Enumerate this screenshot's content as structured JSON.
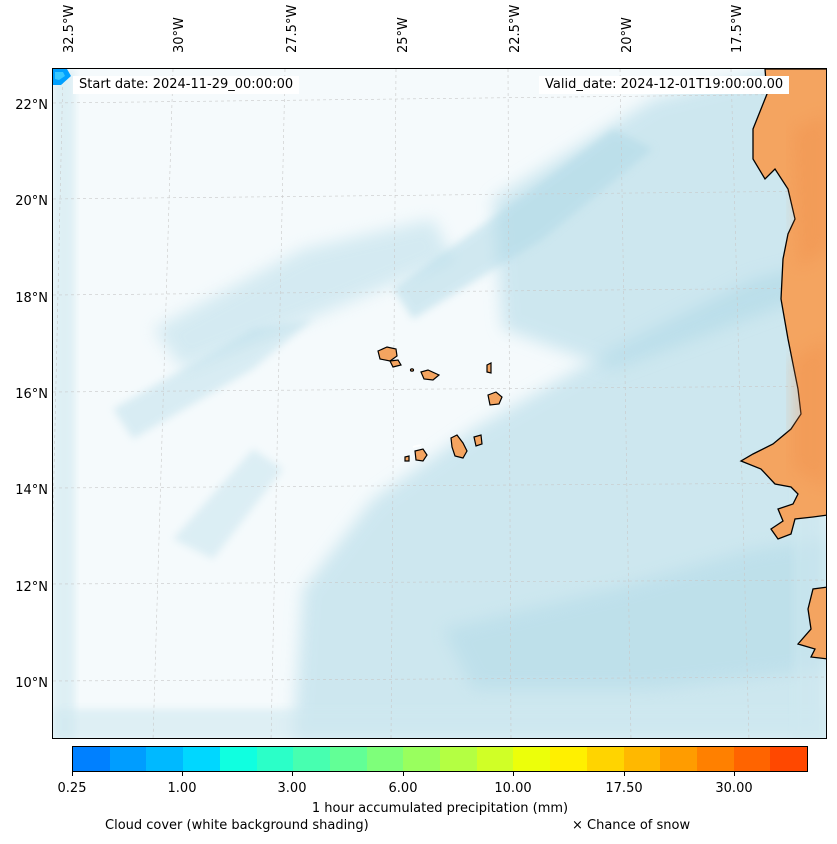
{
  "map": {
    "longitude_labels": [
      "32.5°W",
      "30°W",
      "27.5°W",
      "25°W",
      "22.5°W",
      "20°W",
      "17.5°W"
    ],
    "latitude_labels": [
      "22°N",
      "20°N",
      "18°N",
      "16°N",
      "14°N",
      "12°N",
      "10°N"
    ],
    "start_date": "Start date: 2024-11-29_00:00:00",
    "valid_date": "Valid_date: 2024-12-01T19:00:00.00",
    "colors": {
      "ocean_cloud": "#add8e6",
      "land": "#f4a460",
      "coast": "#000000"
    }
  },
  "colorbar": {
    "colors": [
      "#0080ff",
      "#009dff",
      "#00b9ff",
      "#00d7ff",
      "#10ffe0",
      "#2bffc8",
      "#47ffb0",
      "#62ff96",
      "#7eff7a",
      "#99ff5e",
      "#b4ff42",
      "#d0ff26",
      "#ecff0a",
      "#fff000",
      "#ffd400",
      "#ffb800",
      "#ff9c00",
      "#ff8000",
      "#ff6400",
      "#ff4800"
    ],
    "ticks": [
      "0.25",
      "1.00",
      "3.00",
      "6.00",
      "10.00",
      "17.50",
      "30.00"
    ],
    "label": "1 hour accumulated precipitation (mm)"
  },
  "notes": {
    "cloud": "Cloud cover (white background shading)",
    "snow": "× Chance of snow"
  }
}
